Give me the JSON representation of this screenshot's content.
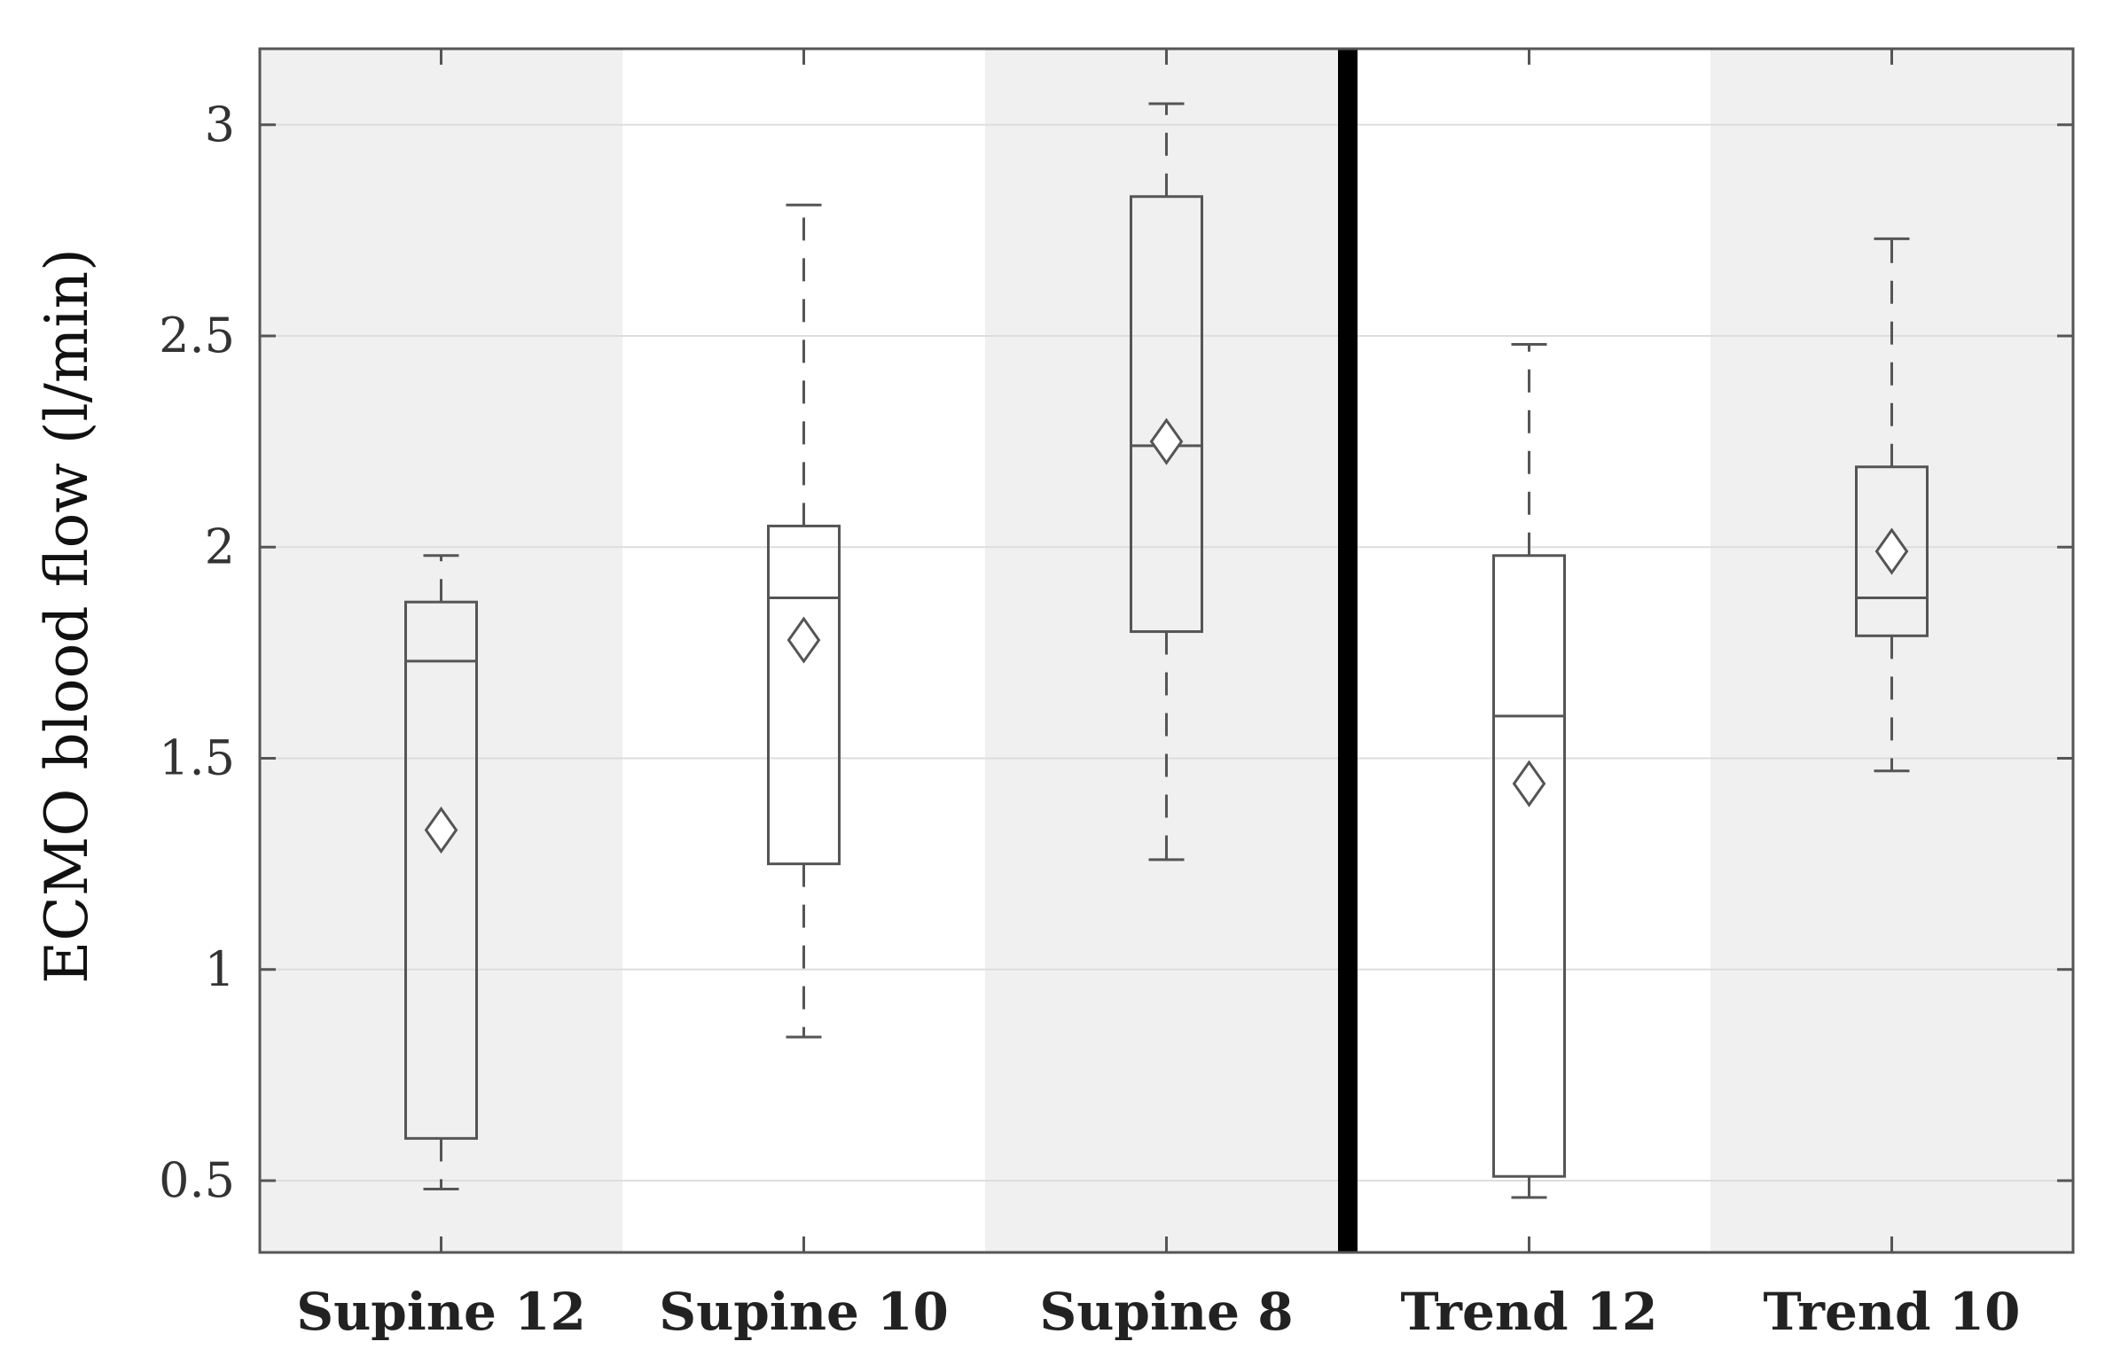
{
  "chart_data": {
    "type": "box",
    "ylabel": "ECMO blood flow (l/min)",
    "ylim": [
      0.33,
      3.18
    ],
    "yticks": [
      0.5,
      1,
      1.5,
      2,
      2.5,
      3
    ],
    "ytick_labels": [
      "0.5",
      "1",
      "1.5",
      "2",
      "2.5",
      "3"
    ],
    "grid": true,
    "background_bands": [
      "#f0f0f0",
      "#ffffff",
      "#f0f0f0",
      "#ffffff",
      "#f0f0f0"
    ],
    "separator_after_category": 3,
    "categories": [
      "Supine 12",
      "Supine 10",
      "Supine 8",
      "Trend 12",
      "Trend 10"
    ],
    "boxes": [
      {
        "category": "Supine 12",
        "whisker_low": 0.48,
        "q1": 0.6,
        "median": 1.73,
        "q3": 1.87,
        "whisker_high": 1.98,
        "mean": 1.33
      },
      {
        "category": "Supine 10",
        "whisker_low": 0.84,
        "q1": 1.25,
        "median": 1.88,
        "q3": 2.05,
        "whisker_high": 2.81,
        "mean": 1.78
      },
      {
        "category": "Supine 8",
        "whisker_low": 1.26,
        "q1": 1.8,
        "median": 2.24,
        "q3": 2.83,
        "whisker_high": 3.05,
        "mean": 2.25
      },
      {
        "category": "Trend 12",
        "whisker_low": 0.46,
        "q1": 0.51,
        "median": 1.6,
        "q3": 1.98,
        "whisker_high": 2.48,
        "mean": 1.44
      },
      {
        "category": "Trend 10",
        "whisker_low": 1.47,
        "q1": 1.79,
        "median": 1.88,
        "q3": 2.19,
        "whisker_high": 2.73,
        "mean": 1.99
      }
    ]
  }
}
